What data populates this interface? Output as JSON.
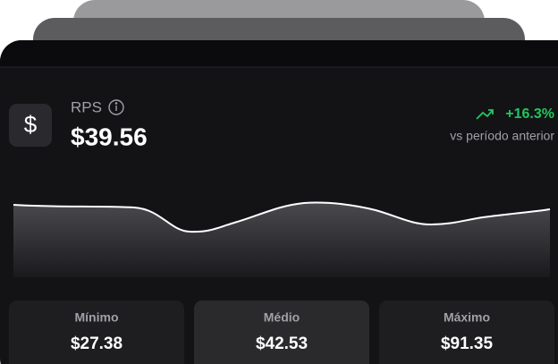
{
  "metric": {
    "label": "RPS",
    "value": "$39.56",
    "icon": "$",
    "change": "+16.3%",
    "change_label": "vs período anterior"
  },
  "stats": [
    {
      "label": "Mínimo",
      "value": "$27.38"
    },
    {
      "label": "Médio",
      "value": "$42.53"
    },
    {
      "label": "Máximo",
      "value": "$91.35"
    }
  ]
}
